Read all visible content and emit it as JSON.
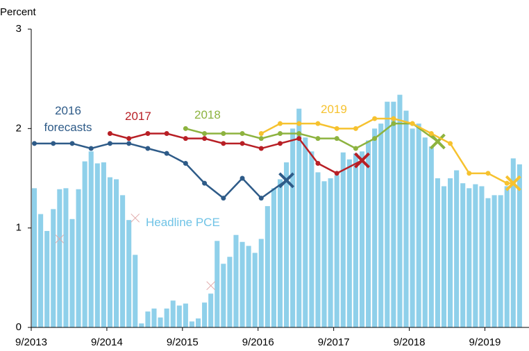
{
  "chart_data": {
    "type": "combo",
    "y_label": "Percent",
    "xlim": [
      0,
      79
    ],
    "xticks": [
      {
        "value": 0,
        "label": "9/2013"
      },
      {
        "value": 12,
        "label": "9/2014"
      },
      {
        "value": 24,
        "label": "9/2015"
      },
      {
        "value": 36,
        "label": "9/2016"
      },
      {
        "value": 48,
        "label": "9/2017"
      },
      {
        "value": 60,
        "label": "9/2018"
      },
      {
        "value": 72,
        "label": "9/2019"
      }
    ],
    "ylim": [
      0,
      3
    ],
    "yticks": [
      0,
      1,
      2,
      3
    ],
    "series": [
      {
        "name": "Headline PCE",
        "type": "bar",
        "color": "#8fd0ea",
        "x": [
          0,
          1,
          2,
          3,
          4,
          5,
          6,
          7,
          8,
          9,
          10,
          11,
          12,
          13,
          14,
          15,
          16,
          17,
          18,
          19,
          20,
          21,
          22,
          23,
          24,
          25,
          26,
          27,
          28,
          29,
          30,
          31,
          32,
          33,
          34,
          35,
          36,
          37,
          38,
          39,
          40,
          41,
          42,
          43,
          44,
          45,
          46,
          47,
          48,
          49,
          50,
          51,
          52,
          53,
          54,
          55,
          56,
          57,
          58,
          59,
          60,
          61,
          62,
          63,
          64,
          65,
          66,
          67,
          68,
          69,
          70,
          71,
          72,
          73,
          74,
          75,
          76,
          77
        ],
        "values": [
          1.4,
          1.14,
          0.97,
          1.19,
          1.39,
          1.4,
          1.09,
          1.39,
          1.67,
          1.77,
          1.65,
          1.66,
          1.51,
          1.49,
          1.33,
          1.08,
          0.73,
          0.04,
          0.16,
          0.19,
          0.1,
          0.19,
          0.27,
          0.22,
          0.24,
          0.06,
          0.09,
          0.25,
          0.34,
          0.87,
          0.64,
          0.71,
          0.93,
          0.86,
          0.82,
          0.75,
          0.89,
          1.22,
          1.4,
          1.49,
          1.66,
          2.0,
          2.2,
          1.91,
          1.77,
          1.56,
          1.47,
          1.5,
          1.53,
          1.76,
          1.69,
          1.75,
          1.77,
          1.88,
          2.0,
          2.05,
          2.27,
          2.27,
          2.34,
          2.18,
          2.0,
          2.05,
          1.91,
          1.82,
          1.5,
          1.42,
          1.5,
          1.58,
          1.45,
          1.4,
          1.44,
          1.42,
          1.3,
          1.33,
          1.33,
          1.42,
          1.7,
          1.64
        ]
      },
      {
        "type": "marker",
        "color": "#e0a8a8",
        "x": [
          4.5,
          16.5,
          28.5
        ],
        "values": [
          0.89,
          1.1,
          0.42
        ]
      },
      {
        "name": "2016 forecasts",
        "type": "line",
        "color": "#2e5b88",
        "x": [
          0.5,
          3.5,
          6.5,
          9.5,
          12.5,
          15.5,
          18.5,
          21.5,
          24.5,
          27.5,
          30.5,
          33.5,
          36.5
        ],
        "values": [
          1.85,
          1.85,
          1.85,
          1.8,
          1.85,
          1.85,
          1.8,
          1.75,
          1.65,
          1.45,
          1.3,
          1.5,
          1.3
        ],
        "outcome": {
          "x": 40.5,
          "value": 1.48
        }
      },
      {
        "name": "2017",
        "type": "line",
        "color": "#b81f25",
        "x": [
          12.5,
          15.5,
          18.5,
          21.5,
          24.5,
          27.5,
          30.5,
          33.5,
          36.5,
          39.5,
          42.5,
          45.5,
          48.5
        ],
        "values": [
          1.95,
          1.9,
          1.95,
          1.95,
          1.9,
          1.9,
          1.85,
          1.85,
          1.8,
          1.85,
          1.9,
          1.65,
          1.55
        ],
        "outcome": {
          "x": 52.5,
          "value": 1.68
        }
      },
      {
        "name": "2018",
        "type": "line",
        "color": "#8db33f",
        "x": [
          24.5,
          27.5,
          30.5,
          33.5,
          36.5,
          39.5,
          42.5,
          45.5,
          48.5,
          51.5,
          54.5,
          57.5,
          60.5
        ],
        "values": [
          2.0,
          1.95,
          1.95,
          1.95,
          1.9,
          1.95,
          1.95,
          1.9,
          1.9,
          1.8,
          1.9,
          2.05,
          2.05
        ],
        "outcome": {
          "x": 64.5,
          "value": 1.87
        }
      },
      {
        "name": "2019",
        "type": "line",
        "color": "#f6c22f",
        "x": [
          36.5,
          39.5,
          42.5,
          45.5,
          48.5,
          51.5,
          54.5,
          57.5,
          60.5,
          63.5,
          66.5,
          69.5,
          72.5,
          75.5
        ],
        "values": [
          1.95,
          2.05,
          2.05,
          2.05,
          2.0,
          2.0,
          2.1,
          2.1,
          2.05,
          1.95,
          1.85,
          1.55,
          1.55,
          1.45
        ],
        "outcome": {
          "x": 76.5,
          "value": 1.45
        }
      }
    ]
  }
}
